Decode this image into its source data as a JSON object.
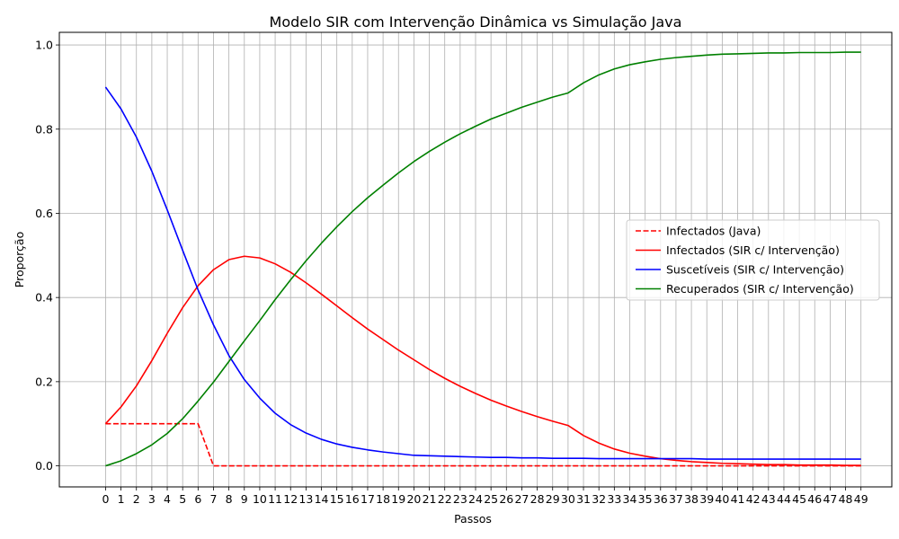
{
  "chart_data": {
    "type": "line",
    "title": "Modelo SIR com Intervenção Dinâmica vs Simulação Java",
    "xlabel": "Passos",
    "ylabel": "Proporção",
    "xlim": [
      -3.0,
      51.0
    ],
    "ylim": [
      -0.05,
      1.03
    ],
    "xticks": [
      0,
      1,
      2,
      3,
      4,
      5,
      6,
      7,
      8,
      9,
      10,
      11,
      12,
      13,
      14,
      15,
      16,
      17,
      18,
      19,
      20,
      21,
      22,
      23,
      24,
      25,
      26,
      27,
      28,
      29,
      30,
      31,
      32,
      33,
      34,
      35,
      36,
      37,
      38,
      39,
      40,
      41,
      42,
      43,
      44,
      45,
      46,
      47,
      48,
      49
    ],
    "yticks": [
      0.0,
      0.2,
      0.4,
      0.6,
      0.8,
      1.0
    ],
    "ytick_labels": [
      "0.0",
      "0.2",
      "0.4",
      "0.6",
      "0.8",
      "1.0"
    ],
    "grid": true,
    "legend_position": "center-right",
    "x": [
      0,
      1,
      2,
      3,
      4,
      5,
      6,
      7,
      8,
      9,
      10,
      11,
      12,
      13,
      14,
      15,
      16,
      17,
      18,
      19,
      20,
      21,
      22,
      23,
      24,
      25,
      26,
      27,
      28,
      29,
      30,
      31,
      32,
      33,
      34,
      35,
      36,
      37,
      38,
      39,
      40,
      41,
      42,
      43,
      44,
      45,
      46,
      47,
      48,
      49
    ],
    "series": [
      {
        "name": "Infectados (Java)",
        "color": "#ff0000",
        "dashed": true,
        "values": [
          0.1,
          0.1,
          0.1,
          0.1,
          0.1,
          0.1,
          0.1,
          0,
          0,
          0,
          0,
          0,
          0,
          0,
          0,
          0,
          0,
          0,
          0,
          0,
          0,
          0,
          0,
          0,
          0,
          0,
          0,
          0,
          0,
          0,
          0,
          0,
          0,
          0,
          0,
          0,
          0,
          0,
          0,
          0,
          0,
          0,
          0,
          0,
          0,
          0,
          0,
          0,
          0,
          0
        ]
      },
      {
        "name": "Infectados (SIR c/ Intervenção)",
        "color": "#ff0000",
        "dashed": false,
        "values": [
          0.1,
          0.14,
          0.19,
          0.25,
          0.315,
          0.376,
          0.428,
          0.466,
          0.49,
          0.498,
          0.494,
          0.48,
          0.46,
          0.435,
          0.408,
          0.38,
          0.352,
          0.325,
          0.3,
          0.275,
          0.252,
          0.229,
          0.208,
          0.189,
          0.172,
          0.156,
          0.142,
          0.129,
          0.117,
          0.106,
          0.096,
          0.072,
          0.054,
          0.04,
          0.03,
          0.023,
          0.017,
          0.013,
          0.01,
          0.008,
          0.006,
          0.005,
          0.004,
          0.003,
          0.003,
          0.002,
          0.002,
          0.002,
          0.001,
          0.001
        ]
      },
      {
        "name": "Suscetíveis (SIR c/ Intervenção)",
        "color": "#0000ff",
        "dashed": false,
        "values": [
          0.9,
          0.848,
          0.781,
          0.7,
          0.608,
          0.512,
          0.418,
          0.335,
          0.262,
          0.205,
          0.161,
          0.125,
          0.098,
          0.078,
          0.063,
          0.052,
          0.044,
          0.038,
          0.033,
          0.029,
          0.025,
          0.024,
          0.023,
          0.022,
          0.021,
          0.02,
          0.02,
          0.019,
          0.019,
          0.018,
          0.018,
          0.018,
          0.017,
          0.017,
          0.017,
          0.017,
          0.017,
          0.017,
          0.017,
          0.016,
          0.016,
          0.016,
          0.016,
          0.016,
          0.016,
          0.016,
          0.016,
          0.016,
          0.016,
          0.016
        ]
      },
      {
        "name": "Recuperados (SIR c/ Intervenção)",
        "color": "#008000",
        "dashed": false,
        "values": [
          0.0,
          0.012,
          0.029,
          0.05,
          0.077,
          0.112,
          0.154,
          0.199,
          0.248,
          0.297,
          0.345,
          0.395,
          0.442,
          0.487,
          0.529,
          0.568,
          0.604,
          0.637,
          0.667,
          0.696,
          0.723,
          0.747,
          0.769,
          0.789,
          0.807,
          0.824,
          0.838,
          0.852,
          0.864,
          0.876,
          0.886,
          0.91,
          0.929,
          0.943,
          0.953,
          0.96,
          0.966,
          0.97,
          0.973,
          0.976,
          0.978,
          0.979,
          0.98,
          0.981,
          0.981,
          0.982,
          0.982,
          0.982,
          0.983,
          0.983
        ]
      }
    ]
  }
}
